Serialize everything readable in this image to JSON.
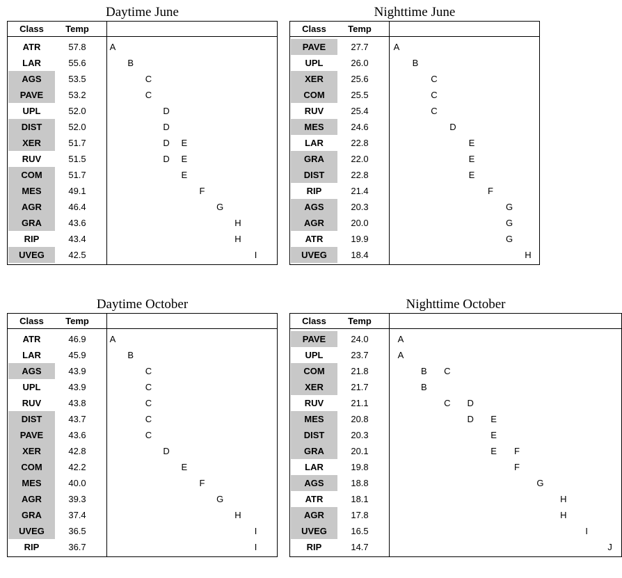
{
  "panels": [
    {
      "title": "Daytime June",
      "header": {
        "class": "Class",
        "temp": "Temp"
      },
      "rows": [
        {
          "class": "ATR",
          "temp": "57.8",
          "shaded": false,
          "groups": [
            "A"
          ]
        },
        {
          "class": "LAR",
          "temp": "55.6",
          "shaded": false,
          "groups": [
            "B"
          ]
        },
        {
          "class": "AGS",
          "temp": "53.5",
          "shaded": true,
          "groups": [
            "C"
          ]
        },
        {
          "class": "PAVE",
          "temp": "53.2",
          "shaded": true,
          "groups": [
            "C"
          ]
        },
        {
          "class": "UPL",
          "temp": "52.0",
          "shaded": false,
          "groups": [
            "D"
          ]
        },
        {
          "class": "DIST",
          "temp": "52.0",
          "shaded": true,
          "groups": [
            "D"
          ]
        },
        {
          "class": "XER",
          "temp": "51.7",
          "shaded": true,
          "groups": [
            "D",
            "E"
          ]
        },
        {
          "class": "RUV",
          "temp": "51.5",
          "shaded": false,
          "groups": [
            "D",
            "E"
          ]
        },
        {
          "class": "COM",
          "temp": "51.7",
          "shaded": true,
          "groups": [
            "E"
          ]
        },
        {
          "class": "MES",
          "temp": "49.1",
          "shaded": true,
          "groups": [
            "F"
          ]
        },
        {
          "class": "AGR",
          "temp": "46.4",
          "shaded": true,
          "groups": [
            "G"
          ]
        },
        {
          "class": "GRA",
          "temp": "43.6",
          "shaded": true,
          "groups": [
            "H"
          ]
        },
        {
          "class": "RIP",
          "temp": "43.4",
          "shaded": false,
          "groups": [
            "H"
          ]
        },
        {
          "class": "UVEG",
          "temp": "42.5",
          "shaded": true,
          "groups": [
            "I"
          ]
        }
      ]
    },
    {
      "title": "Nighttime June",
      "header": {
        "class": "Class",
        "temp": "Temp"
      },
      "rows": [
        {
          "class": "PAVE",
          "temp": "27.7",
          "shaded": true,
          "groups": [
            "A"
          ]
        },
        {
          "class": "UPL",
          "temp": "26.0",
          "shaded": false,
          "groups": [
            "B"
          ]
        },
        {
          "class": "XER",
          "temp": "25.6",
          "shaded": true,
          "groups": [
            "C"
          ]
        },
        {
          "class": "COM",
          "temp": "25.5",
          "shaded": true,
          "groups": [
            "C"
          ]
        },
        {
          "class": "RUV",
          "temp": "25.4",
          "shaded": false,
          "groups": [
            "C"
          ]
        },
        {
          "class": "MES",
          "temp": "24.6",
          "shaded": true,
          "groups": [
            "D"
          ]
        },
        {
          "class": "LAR",
          "temp": "22.8",
          "shaded": false,
          "groups": [
            "E"
          ]
        },
        {
          "class": "GRA",
          "temp": "22.0",
          "shaded": true,
          "groups": [
            "E"
          ]
        },
        {
          "class": "DIST",
          "temp": "22.8",
          "shaded": true,
          "groups": [
            "E"
          ]
        },
        {
          "class": "RIP",
          "temp": "21.4",
          "shaded": false,
          "groups": [
            "F"
          ]
        },
        {
          "class": "AGS",
          "temp": "20.3",
          "shaded": true,
          "groups": [
            "G"
          ]
        },
        {
          "class": "AGR",
          "temp": "20.0",
          "shaded": true,
          "groups": [
            "G"
          ]
        },
        {
          "class": "ATR",
          "temp": "19.9",
          "shaded": false,
          "groups": [
            "G"
          ]
        },
        {
          "class": "UVEG",
          "temp": "18.4",
          "shaded": true,
          "groups": [
            "H"
          ]
        }
      ]
    },
    {
      "title": "Daytime October",
      "header": {
        "class": "Class",
        "temp": "Temp"
      },
      "rows": [
        {
          "class": "ATR",
          "temp": "46.9",
          "shaded": false,
          "groups": [
            "A"
          ]
        },
        {
          "class": "LAR",
          "temp": "45.9",
          "shaded": false,
          "groups": [
            "B"
          ]
        },
        {
          "class": "AGS",
          "temp": "43.9",
          "shaded": true,
          "groups": [
            "C"
          ]
        },
        {
          "class": "UPL",
          "temp": "43.9",
          "shaded": false,
          "groups": [
            "C"
          ]
        },
        {
          "class": "RUV",
          "temp": "43.8",
          "shaded": false,
          "groups": [
            "C"
          ]
        },
        {
          "class": "DIST",
          "temp": "43.7",
          "shaded": true,
          "groups": [
            "C"
          ]
        },
        {
          "class": "PAVE",
          "temp": "43.6",
          "shaded": true,
          "groups": [
            "C"
          ]
        },
        {
          "class": "XER",
          "temp": "42.8",
          "shaded": true,
          "groups": [
            "D"
          ]
        },
        {
          "class": "COM",
          "temp": "42.2",
          "shaded": true,
          "groups": [
            "E"
          ]
        },
        {
          "class": "MES",
          "temp": "40.0",
          "shaded": true,
          "groups": [
            "F"
          ]
        },
        {
          "class": "AGR",
          "temp": "39.3",
          "shaded": true,
          "groups": [
            "G"
          ]
        },
        {
          "class": "GRA",
          "temp": "37.4",
          "shaded": true,
          "groups": [
            "H"
          ]
        },
        {
          "class": "UVEG",
          "temp": "36.5",
          "shaded": true,
          "groups": [
            "I"
          ]
        },
        {
          "class": "RIP",
          "temp": "36.7",
          "shaded": false,
          "groups": [
            "I"
          ]
        }
      ]
    },
    {
      "title": "Nighttime October",
      "header": {
        "class": "Class",
        "temp": "Temp"
      },
      "rows": [
        {
          "class": "PAVE",
          "temp": "24.0",
          "shaded": true,
          "groups": [
            "A"
          ]
        },
        {
          "class": "UPL",
          "temp": "23.7",
          "shaded": false,
          "groups": [
            "A"
          ]
        },
        {
          "class": "COM",
          "temp": "21.8",
          "shaded": true,
          "groups": [
            "B",
            "C"
          ]
        },
        {
          "class": "XER",
          "temp": "21.7",
          "shaded": true,
          "groups": [
            "B"
          ]
        },
        {
          "class": "RUV",
          "temp": "21.1",
          "shaded": false,
          "groups": [
            "C",
            "D"
          ]
        },
        {
          "class": "MES",
          "temp": "20.8",
          "shaded": true,
          "groups": [
            "D",
            "E"
          ]
        },
        {
          "class": "DIST",
          "temp": "20.3",
          "shaded": true,
          "groups": [
            "E"
          ]
        },
        {
          "class": "GRA",
          "temp": "20.1",
          "shaded": true,
          "groups": [
            "E",
            "F"
          ]
        },
        {
          "class": "LAR",
          "temp": "19.8",
          "shaded": false,
          "groups": [
            "F"
          ]
        },
        {
          "class": "AGS",
          "temp": "18.8",
          "shaded": true,
          "groups": [
            "G"
          ]
        },
        {
          "class": "ATR",
          "temp": "18.1",
          "shaded": false,
          "groups": [
            "H"
          ]
        },
        {
          "class": "AGR",
          "temp": "17.8",
          "shaded": true,
          "groups": [
            "H"
          ]
        },
        {
          "class": "UVEG",
          "temp": "16.5",
          "shaded": true,
          "groups": [
            "I"
          ]
        },
        {
          "class": "RIP",
          "temp": "14.7",
          "shaded": false,
          "groups": [
            "J"
          ]
        }
      ]
    }
  ],
  "colors": {
    "shade": "#c8c8c8",
    "border": "#000000"
  }
}
